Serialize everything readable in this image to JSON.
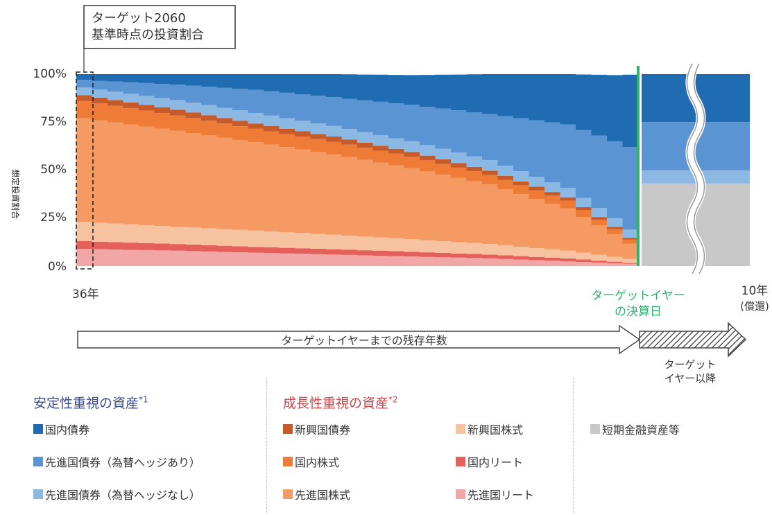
{
  "annotation": {
    "line1": "ターゲット2060",
    "line2": "基準時点の投資割合"
  },
  "chart_data": {
    "type": "area",
    "ylabel": "想定投資割合",
    "y_ticks": [
      "100%",
      "75%",
      "50%",
      "25%",
      "0%"
    ],
    "ylim": [
      0,
      100
    ],
    "x_start_label": "36年",
    "x_end_label_line1": "10年",
    "x_end_label_line2": "(償還)",
    "target_label_line1": "ターゲットイヤー",
    "target_label_line2": "の決算日",
    "target_line_color": "#2db36a",
    "x": [
      36,
      30,
      25,
      20,
      15,
      10,
      5,
      2,
      0
    ],
    "series": [
      {
        "name": "先進国リート",
        "color": "#f2a6a6",
        "values": [
          9,
          8,
          7,
          6,
          5,
          4,
          2.5,
          1.5,
          0.8
        ]
      },
      {
        "name": "国内リート",
        "color": "#e5605a",
        "values": [
          4,
          3.5,
          3,
          2.8,
          2.5,
          2,
          1.5,
          0.8,
          0.4
        ]
      },
      {
        "name": "新興国株式",
        "color": "#f7c2a0",
        "values": [
          10,
          9,
          8.5,
          7.5,
          6.5,
          5.5,
          4,
          2.5,
          1.5
        ]
      },
      {
        "name": "先進国株式",
        "color": "#f49a62",
        "values": [
          54,
          50,
          46,
          42,
          37,
          31,
          22,
          12,
          4
        ]
      },
      {
        "name": "国内株式",
        "color": "#ee7c36",
        "values": [
          9,
          8,
          7,
          6.5,
          6,
          5,
          4,
          2.5,
          1.5
        ]
      },
      {
        "name": "新興国債券",
        "color": "#c65a28",
        "values": [
          3,
          3,
          2.8,
          2.7,
          2.5,
          2.2,
          1.8,
          1.2,
          0.8
        ]
      },
      {
        "name": "先進国債券(為替ヘッジなし)",
        "color": "#8cb8e4",
        "values": [
          4,
          5,
          5.5,
          5.5,
          5.5,
          5.5,
          5,
          4.5,
          4
        ]
      },
      {
        "name": "先進国債券(為替ヘッジあり)",
        "color": "#5a94d2",
        "values": [
          4,
          8,
          12,
          15,
          19,
          24,
          33,
          40,
          46
        ]
      },
      {
        "name": "国内債券",
        "color": "#1f6cb3",
        "values": [
          3,
          5.5,
          8.2,
          12,
          15.5,
          20.8,
          26.2,
          34.5,
          41
        ]
      }
    ],
    "after_target": [
      {
        "name": "国内債券",
        "value": 25,
        "color": "#1f6cb3"
      },
      {
        "name": "先進国債券(為替ヘッジあり)",
        "value": 25,
        "color": "#5a94d2"
      },
      {
        "name": "先進国債券(為替ヘッジなし)",
        "value": 7,
        "color": "#8cb8e4"
      },
      {
        "name": "短期金融資産等",
        "value": 43,
        "color": "#c8c8c8"
      }
    ]
  },
  "arrows": {
    "main": "ターゲットイヤーまでの残存年数",
    "after_line1": "ターゲット",
    "after_line2": "イヤー以降"
  },
  "legend": {
    "stable_title": "安定性重視の資産",
    "stable_note": "*1",
    "growth_title": "成長性重視の資産",
    "growth_note": "*2",
    "stable_color": "#3b4a8f",
    "growth_color": "#c9454a",
    "items": [
      {
        "label": "国内債券",
        "color": "#1f6cb3"
      },
      {
        "label": "先進国債券（為替ヘッジあり）",
        "color": "#5a94d2"
      },
      {
        "label": "先進国債券（為替ヘッジなし）",
        "color": "#8cb8e4"
      },
      {
        "label": "新興国債券",
        "color": "#c65a28"
      },
      {
        "label": "国内株式",
        "color": "#ee7c36"
      },
      {
        "label": "先進国株式",
        "color": "#f49a62"
      },
      {
        "label": "新興国株式",
        "color": "#f7c2a0"
      },
      {
        "label": "国内リート",
        "color": "#e5605a"
      },
      {
        "label": "先進国リート",
        "color": "#f2a6a6"
      },
      {
        "label": "短期金融資産等",
        "color": "#c8c8c8"
      }
    ]
  }
}
